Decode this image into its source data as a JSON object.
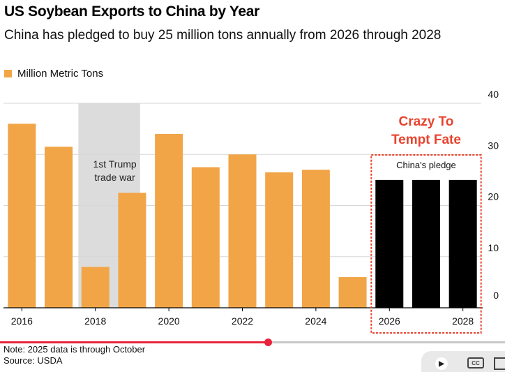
{
  "header": {
    "title": "US Soybean Exports to China by Year",
    "subtitle": "China has pledged to buy 25 million tons annually from 2026 through 2028"
  },
  "legend": {
    "label": "Million Metric Tons",
    "color": "#f2a546"
  },
  "colors": {
    "history": "#f2a546",
    "pledge": "#000000",
    "shade": "#dcdcdc",
    "highlight": "#e8432e",
    "grid": "#d7d7d7"
  },
  "annotations": {
    "trade_war": [
      "1st Trump",
      "trade war"
    ],
    "pledge_box_label": "China's pledge",
    "callout": [
      "Crazy To",
      "Tempt Fate"
    ]
  },
  "chart_data": {
    "type": "bar",
    "title": "US Soybean Exports to China by Year",
    "ylabel": "Million Metric Tons",
    "xlabel": "",
    "ylim": [
      0,
      40
    ],
    "yticks": [
      0,
      10,
      20,
      30,
      40
    ],
    "categories": [
      "2016",
      "2017",
      "2018",
      "2019",
      "2020",
      "2021",
      "2022",
      "2023",
      "2024",
      "2025",
      "2026",
      "2027",
      "2028"
    ],
    "xtick_labels": [
      "2016",
      "2018",
      "2020",
      "2022",
      "2024",
      "2026",
      "2028"
    ],
    "series": [
      {
        "name": "Million Metric Tons",
        "values": [
          36,
          31.5,
          8,
          22.5,
          34,
          27.5,
          30,
          26.5,
          27,
          6,
          null,
          null,
          null
        ]
      },
      {
        "name": "China's pledge",
        "values": [
          null,
          null,
          null,
          null,
          null,
          null,
          null,
          null,
          null,
          null,
          25,
          25,
          25
        ]
      }
    ],
    "shaded_period": {
      "from": "2018",
      "to": "2019",
      "label": "1st Trump trade war"
    }
  },
  "footer": {
    "note": "Note: 2025 data is through October",
    "source": "Source: USDA"
  },
  "video_player": {
    "progress": 0.53,
    "cc_label": "CC"
  }
}
